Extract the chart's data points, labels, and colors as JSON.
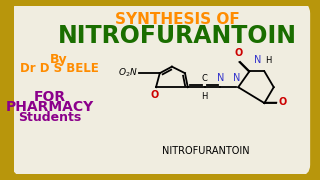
{
  "bg_outer": "#b8960c",
  "bg_inner": "#f0ede0",
  "title_line1": "SYNTHESIS OF",
  "title_line1_color": "#ff8c00",
  "title_line2": "NITROFURANTOIN",
  "title_line2_color": "#1a6e00",
  "by_text": "By",
  "by_color": "#ff8c00",
  "author_text": "Dr D S BELE",
  "author_color": "#ff8c00",
  "for_text": "FOR",
  "for_color": "#8b008b",
  "pharmacy_text": "PHARMACY",
  "pharmacy_color": "#8b008b",
  "students_text": "Students",
  "students_color": "#8b008b",
  "molecule_label": "NITROFURANTOIN",
  "molecule_label_color": "#000000",
  "black": "#000000",
  "red": "#cc0000",
  "blue": "#3333cc"
}
